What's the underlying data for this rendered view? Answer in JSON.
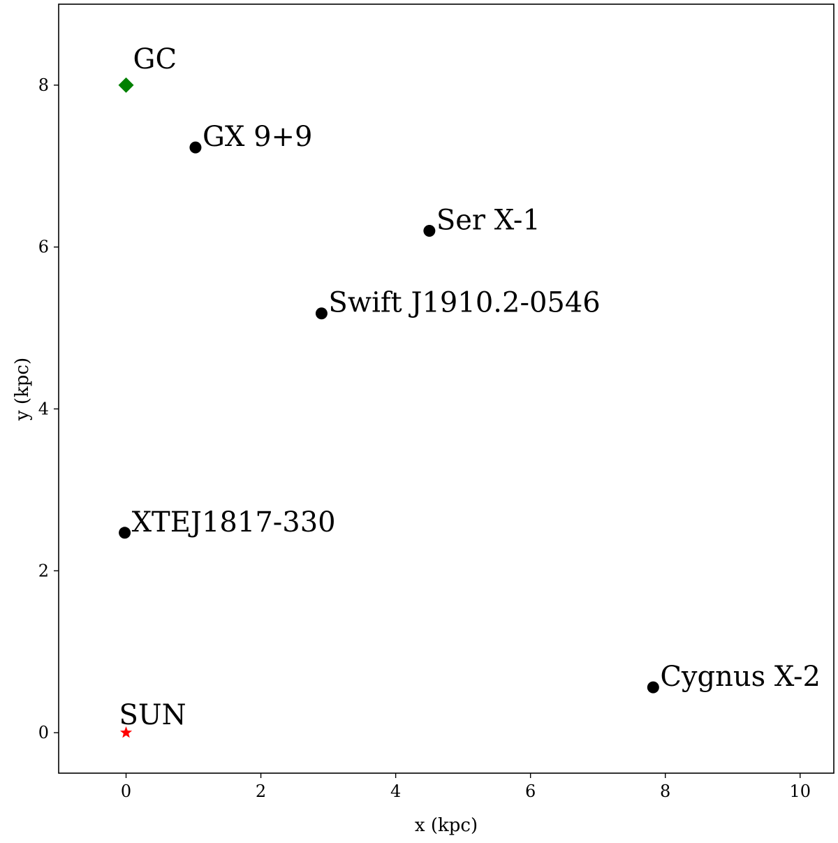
{
  "chart_data": {
    "type": "scatter",
    "title": "",
    "xlabel": "x (kpc)",
    "ylabel": "y (kpc)",
    "xlim": [
      -1.0,
      10.5
    ],
    "ylim": [
      -0.5,
      9.0
    ],
    "xticks": [
      0,
      2,
      4,
      6,
      8,
      10
    ],
    "yticks": [
      0,
      2,
      4,
      6,
      8
    ],
    "grid": false,
    "legend": "none",
    "points": [
      {
        "label": "GC",
        "x": 0.0,
        "y": 8.0,
        "marker": "diamond",
        "color": "#008000"
      },
      {
        "label": "SUN",
        "x": 0.0,
        "y": 0.0,
        "marker": "star",
        "color": "#ff0000"
      },
      {
        "label": "GX 9+9",
        "x": 1.03,
        "y": 7.23,
        "marker": "circle",
        "color": "#000000"
      },
      {
        "label": "Ser X-1",
        "x": 4.5,
        "y": 6.2,
        "marker": "circle",
        "color": "#000000"
      },
      {
        "label": "Swift J1910.2-0546",
        "x": 2.9,
        "y": 5.18,
        "marker": "circle",
        "color": "#000000"
      },
      {
        "label": "XTEJ1817-330",
        "x": -0.02,
        "y": 2.47,
        "marker": "circle",
        "color": "#000000"
      },
      {
        "label": "Cygnus X-2",
        "x": 7.82,
        "y": 0.56,
        "marker": "circle",
        "color": "#000000"
      }
    ]
  }
}
